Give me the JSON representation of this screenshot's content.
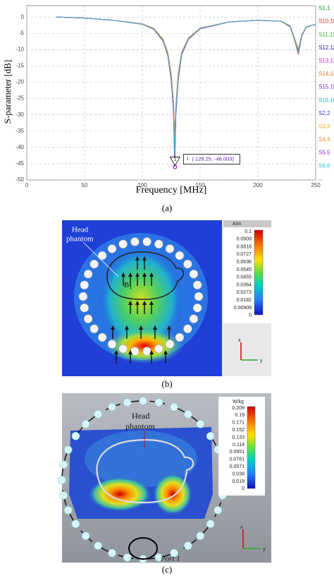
{
  "chart_data": {
    "type": "line",
    "x_label": "Frequency [MHz]",
    "y_label": "S-parameter [dB]",
    "x": [
      25,
      50,
      75,
      100,
      110,
      118,
      122,
      125,
      127,
      128,
      129,
      131,
      134,
      140,
      150,
      175,
      200,
      220,
      228,
      232,
      235,
      238,
      242,
      250
    ],
    "series": [
      {
        "name": "S1,1",
        "color": "#1f9e1f",
        "values": [
          0,
          -0.3,
          -1,
          -2.2,
          -3.6,
          -7,
          -11,
          -18,
          -27,
          -40,
          -28,
          -18,
          -11,
          -6.5,
          -3.5,
          -1.5,
          -1,
          -1.3,
          -2.8,
          -7,
          -10.5,
          -5.5,
          -3,
          -2.2
        ]
      },
      {
        "name": "S10,10",
        "color": "#e02424",
        "values": [
          0,
          -0.3,
          -1,
          -2.2,
          -3.7,
          -7.2,
          -11.3,
          -18.5,
          -28,
          -42,
          -29,
          -18.5,
          -11.2,
          -6.6,
          -3.5,
          -1.5,
          -1,
          -1.3,
          -2.9,
          -7.2,
          -11,
          -5.6,
          -3,
          -2.2
        ]
      },
      {
        "name": "S11,11",
        "color": "#2db52d",
        "values": [
          0,
          -0.3,
          -1,
          -2.1,
          -3.5,
          -6.8,
          -10.8,
          -17.5,
          -26,
          -38,
          -27,
          -17.5,
          -10.8,
          -6.4,
          -3.4,
          -1.5,
          -1,
          -1.3,
          -2.7,
          -6.8,
          -10,
          -5.4,
          -3,
          -2.2
        ]
      },
      {
        "name": "S12,12",
        "color": "#1a1a9e",
        "values": [
          0,
          -0.3,
          -1,
          -2.2,
          -3.7,
          -7.3,
          -11.5,
          -19,
          -28.5,
          -44,
          -29.5,
          -19,
          -11.4,
          -6.7,
          -3.6,
          -1.5,
          -1,
          -1.3,
          -3,
          -7.4,
          -11.5,
          -5.8,
          -3.1,
          -2.2
        ]
      },
      {
        "name": "S13,13",
        "color": "#c81fc8",
        "values": [
          0,
          -0.3,
          -1,
          -2.2,
          -3.8,
          -7.4,
          -11.7,
          -19.5,
          -29,
          -46.003,
          -30,
          -19.5,
          -11.5,
          -6.8,
          -3.6,
          -1.5,
          -1,
          -1.3,
          -2.9,
          -7.3,
          -11,
          -5.6,
          -3,
          -2.2
        ]
      },
      {
        "name": "S14,14",
        "color": "#e07a1c",
        "values": [
          0,
          -0.3,
          -1,
          -2.2,
          -3.6,
          -7.1,
          -11.2,
          -18.2,
          -27.5,
          -41,
          -28.5,
          -18.2,
          -11.1,
          -6.5,
          -3.5,
          -1.5,
          -1,
          -1.3,
          -2.8,
          -7.1,
          -10.8,
          -5.5,
          -3,
          -2.2
        ]
      },
      {
        "name": "S15,15",
        "color": "#7426cf",
        "values": [
          0,
          -0.3,
          -1,
          -2.1,
          -3.5,
          -6.9,
          -10.9,
          -17.8,
          -26.5,
          -39,
          -27.5,
          -17.8,
          -10.9,
          -6.4,
          -3.4,
          -1.5,
          -1,
          -1.3,
          -2.7,
          -6.9,
          -10.2,
          -5.4,
          -3,
          -2.2
        ]
      },
      {
        "name": "S16,16",
        "color": "#1fb0c0",
        "values": [
          0,
          -0.3,
          -1,
          -2.2,
          -3.7,
          -7.2,
          -11.4,
          -18.8,
          -28.2,
          -43,
          -29.2,
          -18.8,
          -11.3,
          -6.6,
          -3.5,
          -1.5,
          -1,
          -1.3,
          -2.9,
          -7.3,
          -11.2,
          -5.7,
          -3.1,
          -2.2
        ]
      },
      {
        "name": "S2,2",
        "color": "#2a40e0",
        "values": [
          0,
          -0.3,
          -1,
          -2.2,
          -3.8,
          -7.4,
          -11.6,
          -19.2,
          -28.8,
          -45,
          -29.8,
          -19.2,
          -11.5,
          -6.7,
          -3.6,
          -1.5,
          -1,
          -1.3,
          -2.8,
          -7.2,
          -10.6,
          -5.5,
          -3,
          -2.2
        ]
      },
      {
        "name": "S3,3",
        "color": "#f0a21e",
        "values": [
          0,
          -0.3,
          -1,
          -2.1,
          -3.5,
          -6.8,
          -10.7,
          -17.3,
          -25.8,
          -37,
          -26.8,
          -17.3,
          -10.7,
          -6.3,
          -3.4,
          -1.5,
          -1,
          -1.3,
          -2.7,
          -6.7,
          -9.8,
          -5.3,
          -2.9,
          -2.2
        ]
      },
      {
        "name": "S4,4",
        "color": "#f08a3a",
        "values": [
          0,
          -0.3,
          -1,
          -2.2,
          -3.6,
          -7.1,
          -11.1,
          -18.1,
          -27.2,
          -40.5,
          -28.2,
          -18.1,
          -11.1,
          -6.5,
          -3.5,
          -1.5,
          -1,
          -1.3,
          -3,
          -7.4,
          -11.4,
          -5.8,
          -3.1,
          -2.2
        ]
      },
      {
        "name": "S5,5",
        "color": "#9a2fd0",
        "values": [
          0,
          -0.3,
          -1,
          -2.2,
          -3.8,
          -7.4,
          -11.7,
          -19.4,
          -29,
          -46,
          -30,
          -19.4,
          -11.5,
          -6.8,
          -3.6,
          -1.5,
          -1,
          -1.3,
          -2.9,
          -7.2,
          -10.9,
          -5.6,
          -3,
          -2.2
        ]
      },
      {
        "name": "S6,6",
        "color": "#2cc3d0",
        "values": [
          0,
          -0.3,
          -1,
          -2.2,
          -3.7,
          -7.2,
          -11.3,
          -18.6,
          -28,
          -42.5,
          -29,
          -18.6,
          -11.2,
          -6.6,
          -3.5,
          -1.5,
          -1,
          -1.3,
          -2.8,
          -7.1,
          -10.4,
          -5.5,
          -3,
          -2.2
        ]
      }
    ],
    "legend_more": "...",
    "xlim": [
      0,
      250
    ],
    "xticks": [
      0,
      50,
      100,
      150,
      200,
      250
    ],
    "ylim": [
      -50,
      3.5
    ],
    "yticks": [
      0,
      -5,
      -10,
      -15,
      -20,
      -25,
      -30,
      -35,
      -40,
      -45,
      -50
    ],
    "grid": true,
    "annotation": {
      "marker": "1",
      "x": 128.25,
      "y": -46.003,
      "label": "( 128.25, -46.003)"
    }
  },
  "caption_a": "(a)",
  "panel_b": {
    "phantom_label": [
      "Head",
      "phantom"
    ],
    "field_symbol": "B",
    "field_subscript": "1",
    "colorbar_unit": "A/m",
    "colorbar_ticks": [
      "0.1",
      "0.0909",
      "0.0818",
      "0.0727",
      "0.0636",
      "0.0545",
      "0.0455",
      "0.0364",
      "0.0273",
      "0.0182",
      "0.00909",
      "0"
    ],
    "axes": [
      "x",
      "y"
    ],
    "caption": "(b)"
  },
  "panel_c": {
    "phantom_label": [
      "Head",
      "phantom"
    ],
    "port_label": "Port 1",
    "colorbar_unit": "W/kg",
    "colorbar_ticks": [
      "0.209",
      "0.19",
      "0.171",
      "0.152",
      "0.133",
      "0.114",
      "0.0951",
      "0.0761",
      "0.0571",
      "0.038",
      "0.019",
      "0"
    ],
    "axes": [
      "x",
      "y"
    ],
    "caption": "(c)"
  }
}
